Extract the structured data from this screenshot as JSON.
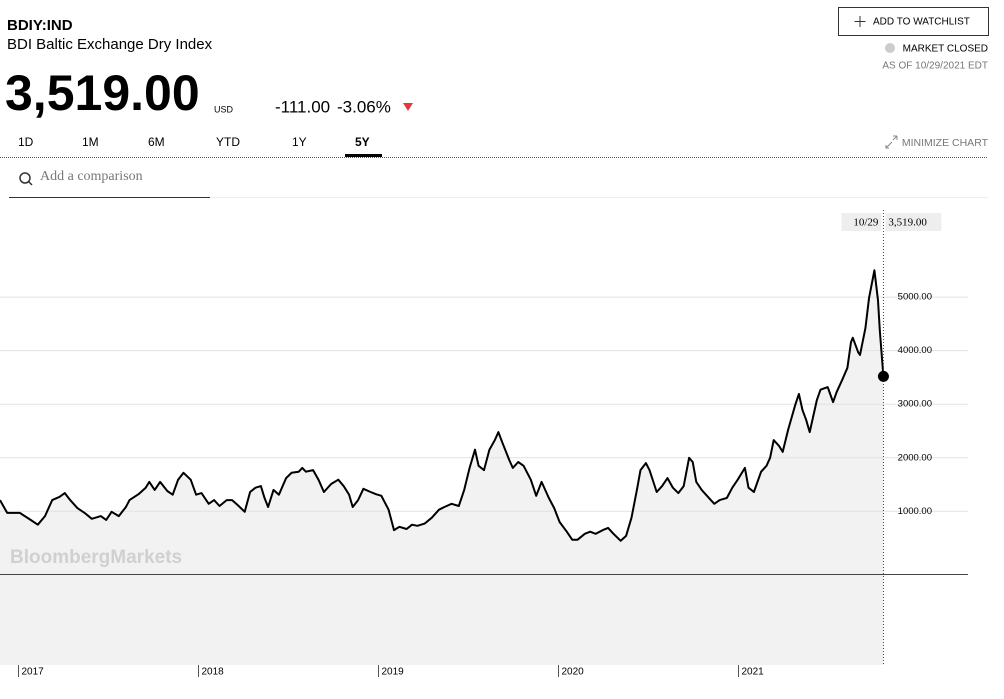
{
  "header": {
    "ticker": "BDIY:IND",
    "name": "BDI Baltic Exchange Dry Index",
    "price": "3,519.00",
    "currency": "USD",
    "change": "-111.00",
    "change_pct": "-3.06%",
    "watchlist": "ADD TO WATCHLIST",
    "status": "MARKET CLOSED",
    "as_of": "AS OF 10/29/2021 EDT"
  },
  "controls": {
    "ranges": [
      "1D",
      "1M",
      "6M",
      "YTD",
      "1Y",
      "5Y"
    ],
    "minimize": "MINIMIZE CHART",
    "comparison": "Add a comparison"
  },
  "chart_data": {
    "type": "line",
    "watermark": "BloombergMarkets",
    "color": "#000000",
    "fill_color": "#f2f2f2",
    "grid": true,
    "last_date": "10/29",
    "last_label": "3,519.00",
    "xlim": [
      2016.9,
      2022.28
    ],
    "xticks": [
      2017,
      2018,
      2019,
      2020,
      2021
    ],
    "ylim": [
      -1870,
      6720
    ],
    "yticks": [
      {
        "value": 1000,
        "label": "1000.00"
      },
      {
        "value": 2000,
        "label": "2000.00"
      },
      {
        "value": 3000,
        "label": "3000.00"
      },
      {
        "value": 4000,
        "label": "4000.00"
      },
      {
        "value": 5000,
        "label": "5000.00"
      }
    ],
    "x": [
      2016.9,
      2016.94,
      2017.01,
      2017.07,
      2017.11,
      2017.15,
      2017.19,
      2017.23,
      2017.26,
      2017.29,
      2017.33,
      2017.37,
      2017.41,
      2017.46,
      2017.49,
      2017.52,
      2017.56,
      2017.6,
      2017.62,
      2017.67,
      2017.71,
      2017.73,
      2017.76,
      2017.79,
      2017.83,
      2017.86,
      2017.89,
      2017.92,
      2017.96,
      2017.99,
      2018.02,
      2018.06,
      2018.09,
      2018.12,
      2018.16,
      2018.19,
      2018.22,
      2018.26,
      2018.29,
      2018.32,
      2018.35,
      2018.37,
      2018.39,
      2018.42,
      2018.45,
      2018.49,
      2018.52,
      2018.56,
      2018.58,
      2018.6,
      2018.64,
      2018.67,
      2018.7,
      2018.74,
      2018.78,
      2018.81,
      2018.84,
      2018.86,
      2018.89,
      2018.92,
      2018.96,
      2018.99,
      2019.02,
      2019.06,
      2019.09,
      2019.12,
      2019.16,
      2019.19,
      2019.22,
      2019.26,
      2019.3,
      2019.34,
      2019.37,
      2019.41,
      2019.45,
      2019.48,
      2019.51,
      2019.54,
      2019.56,
      2019.59,
      2019.62,
      2019.65,
      2019.67,
      2019.69,
      2019.73,
      2019.75,
      2019.78,
      2019.81,
      2019.85,
      2019.88,
      2019.91,
      2019.95,
      2019.98,
      2020.01,
      2020.05,
      2020.08,
      2020.11,
      2020.15,
      2020.18,
      2020.21,
      2020.25,
      2020.28,
      2020.31,
      2020.35,
      2020.38,
      2020.41,
      2020.44,
      2020.46,
      2020.49,
      2020.51,
      2020.55,
      2020.58,
      2020.61,
      2020.64,
      2020.67,
      2020.7,
      2020.73,
      2020.75,
      2020.77,
      2020.8,
      2020.84,
      2020.87,
      2020.9,
      2020.94,
      2020.97,
      2021.0,
      2021.04,
      2021.06,
      2021.09,
      2021.13,
      2021.16,
      2021.18,
      2021.2,
      2021.23,
      2021.25,
      2021.28,
      2021.32,
      2021.34,
      2021.36,
      2021.38,
      2021.4,
      2021.44,
      2021.46,
      2021.5,
      2021.53,
      2021.55,
      2021.58,
      2021.61,
      2021.63,
      2021.64,
      2021.67,
      2021.68,
      2021.71,
      2021.73,
      2021.76,
      2021.78,
      2021.79,
      2021.81
    ],
    "values": [
      1210,
      970,
      970,
      840,
      750,
      910,
      1210,
      1270,
      1340,
      1210,
      1060,
      970,
      860,
      910,
      840,
      990,
      910,
      1080,
      1210,
      1320,
      1440,
      1550,
      1400,
      1550,
      1380,
      1310,
      1590,
      1720,
      1590,
      1310,
      1340,
      1140,
      1210,
      1100,
      1210,
      1210,
      1120,
      990,
      1360,
      1440,
      1470,
      1250,
      1080,
      1400,
      1310,
      1620,
      1720,
      1740,
      1810,
      1740,
      1770,
      1590,
      1360,
      1510,
      1590,
      1470,
      1310,
      1080,
      1210,
      1420,
      1360,
      1320,
      1290,
      1030,
      650,
      710,
      670,
      750,
      730,
      770,
      880,
      1030,
      1080,
      1140,
      1100,
      1400,
      1810,
      2150,
      1850,
      1770,
      2150,
      2330,
      2480,
      2300,
      1960,
      1810,
      1920,
      1850,
      1590,
      1290,
      1550,
      1250,
      1060,
      800,
      620,
      470,
      470,
      580,
      620,
      580,
      650,
      690,
      580,
      450,
      540,
      880,
      1400,
      1770,
      1900,
      1770,
      1360,
      1470,
      1620,
      1440,
      1340,
      1470,
      2000,
      1920,
      1550,
      1400,
      1250,
      1140,
      1210,
      1250,
      1440,
      1590,
      1810,
      1440,
      1360,
      1740,
      1850,
      2000,
      2330,
      2220,
      2110,
      2520,
      2990,
      3190,
      2890,
      2710,
      2480,
      3080,
      3270,
      3320,
      3040,
      3230,
      3450,
      3680,
      4160,
      4240,
      3970,
      3920,
      4420,
      4980,
      5500,
      4940,
      4380,
      3519
    ]
  }
}
